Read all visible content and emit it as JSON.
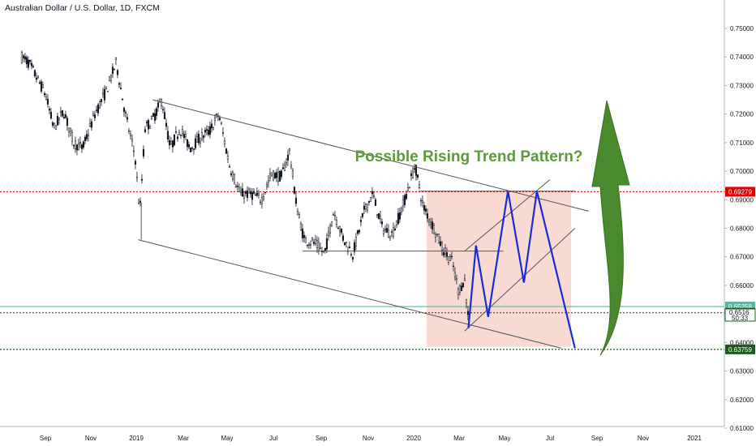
{
  "header": {
    "title": "Australian Dollar / U.S. Dollar, 1D, FXCM"
  },
  "annotation": {
    "text": "Possible Rising Trend Pattern?"
  },
  "colors": {
    "up_candle": "#131722",
    "down_candle": "#131722",
    "trendline": "#555555",
    "projection": "#1a2bd6",
    "arrow": "#4a8a2e",
    "zone": "#f4c6bb",
    "red_level": "#e00000",
    "teal_level": "#5fb3a3",
    "green_level": "#1e5a1e"
  },
  "chart_data": {
    "type": "candlestick",
    "title": "Australian Dollar / U.S. Dollar, 1D, FXCM",
    "x_ticks": [
      "Sep",
      "Nov",
      "2019",
      "Mar",
      "May",
      "Jul",
      "Sep",
      "Nov",
      "2020",
      "Mar",
      "May",
      "Jul",
      "Sep",
      "Nov",
      "2021"
    ],
    "y_ticks": [
      "0.75000",
      "0.74000",
      "0.73000",
      "0.72000",
      "0.71000",
      "0.70000",
      "0.69000",
      "0.68000",
      "0.67000",
      "0.66000",
      "0.65000",
      "0.64000",
      "0.63000",
      "0.62000",
      "0.61000"
    ],
    "ylim": [
      0.6075,
      0.7545
    ],
    "price_path": [
      [
        "2018-08-01",
        0.74
      ],
      [
        "2018-08-10",
        0.738
      ],
      [
        "2018-08-20",
        0.733
      ],
      [
        "2018-09-01",
        0.727
      ],
      [
        "2018-09-12",
        0.715
      ],
      [
        "2018-09-25",
        0.721
      ],
      [
        "2018-10-08",
        0.71
      ],
      [
        "2018-10-20",
        0.708
      ],
      [
        "2018-11-05",
        0.72
      ],
      [
        "2018-11-20",
        0.728
      ],
      [
        "2018-12-03",
        0.738
      ],
      [
        "2018-12-15",
        0.72
      ],
      [
        "2018-12-28",
        0.705
      ],
      [
        "2019-01-03",
        0.685
      ],
      [
        "2019-01-10",
        0.715
      ],
      [
        "2019-01-20",
        0.718
      ],
      [
        "2019-02-01",
        0.725
      ],
      [
        "2019-02-12",
        0.708
      ],
      [
        "2019-02-25",
        0.715
      ],
      [
        "2019-03-10",
        0.708
      ],
      [
        "2019-03-25",
        0.712
      ],
      [
        "2019-04-05",
        0.714
      ],
      [
        "2019-04-17",
        0.72
      ],
      [
        "2019-05-01",
        0.702
      ],
      [
        "2019-05-15",
        0.692
      ],
      [
        "2019-05-30",
        0.692
      ],
      [
        "2019-06-12",
        0.69
      ],
      [
        "2019-06-25",
        0.699
      ],
      [
        "2019-07-08",
        0.698
      ],
      [
        "2019-07-19",
        0.707
      ],
      [
        "2019-07-28",
        0.688
      ],
      [
        "2019-08-07",
        0.676
      ],
      [
        "2019-08-20",
        0.675
      ],
      [
        "2019-09-03",
        0.671
      ],
      [
        "2019-09-15",
        0.686
      ],
      [
        "2019-09-28",
        0.676
      ],
      [
        "2019-10-10",
        0.671
      ],
      [
        "2019-10-25",
        0.686
      ],
      [
        "2019-11-05",
        0.692
      ],
      [
        "2019-11-18",
        0.68
      ],
      [
        "2019-12-01",
        0.678
      ],
      [
        "2019-12-15",
        0.688
      ],
      [
        "2019-12-31",
        0.702
      ],
      [
        "2020-01-10",
        0.688
      ],
      [
        "2020-01-25",
        0.68
      ],
      [
        "2020-02-05",
        0.673
      ],
      [
        "2020-02-18",
        0.668
      ],
      [
        "2020-02-26",
        0.658
      ],
      [
        "2020-03-05",
        0.662
      ],
      [
        "2020-03-10",
        0.648
      ]
    ],
    "lines": [
      {
        "name": "upper channel",
        "from": [
          "2019-01-20",
          0.725
        ],
        "to": [
          "2020-08-15",
          0.686
        ]
      },
      {
        "name": "lower channel",
        "from": [
          "2019-01-01",
          0.676
        ],
        "to": [
          "2020-07-10",
          0.638
        ]
      },
      {
        "name": "vertical marker",
        "from": [
          "2019-01-05",
          0.689
        ],
        "to": [
          "2019-01-05",
          0.676
        ]
      },
      {
        "name": "range line",
        "from": [
          "2019-08-05",
          0.672
        ],
        "to": [
          "2020-04-25",
          0.672
        ]
      },
      {
        "name": "short resistance",
        "from": [
          "2020-01-05",
          0.693
        ],
        "to": [
          "2020-07-28",
          0.693
        ]
      },
      {
        "name": "rising channel top",
        "from": [
          "2020-03-05",
          0.672
        ],
        "to": [
          "2020-06-25",
          0.697
        ]
      },
      {
        "name": "rising channel bottom",
        "from": [
          "2020-03-05",
          0.644
        ],
        "to": [
          "2020-07-28",
          0.68
        ]
      }
    ],
    "projection": [
      [
        "2020-03-10",
        0.645
      ],
      [
        "2020-03-20",
        0.674
      ],
      [
        "2020-04-05",
        0.649
      ],
      [
        "2020-05-01",
        0.693
      ],
      [
        "2020-05-22",
        0.661
      ],
      [
        "2020-06-08",
        0.693
      ],
      [
        "2020-07-28",
        0.638
      ]
    ],
    "zone": {
      "from": "2020-01-15",
      "to": "2020-07-23",
      "top": 0.693,
      "bottom": 0.6385
    },
    "levels": [
      {
        "label": "0.69279",
        "value": 0.69279,
        "color": "#e00000",
        "style": "dotted"
      },
      {
        "label": "0.65258",
        "value": 0.65258,
        "color": "#5fb3a3",
        "style": "solid"
      },
      {
        "label": "0.65041",
        "value": 0.65041,
        "color": "#1e5a1e",
        "style": "dotted"
      },
      {
        "label": "0.63759",
        "value": 0.63759,
        "color": "#1e5a1e",
        "style": "dotted"
      }
    ],
    "price_badge": {
      "price": "0.6516",
      "countdown": "50:33"
    }
  }
}
